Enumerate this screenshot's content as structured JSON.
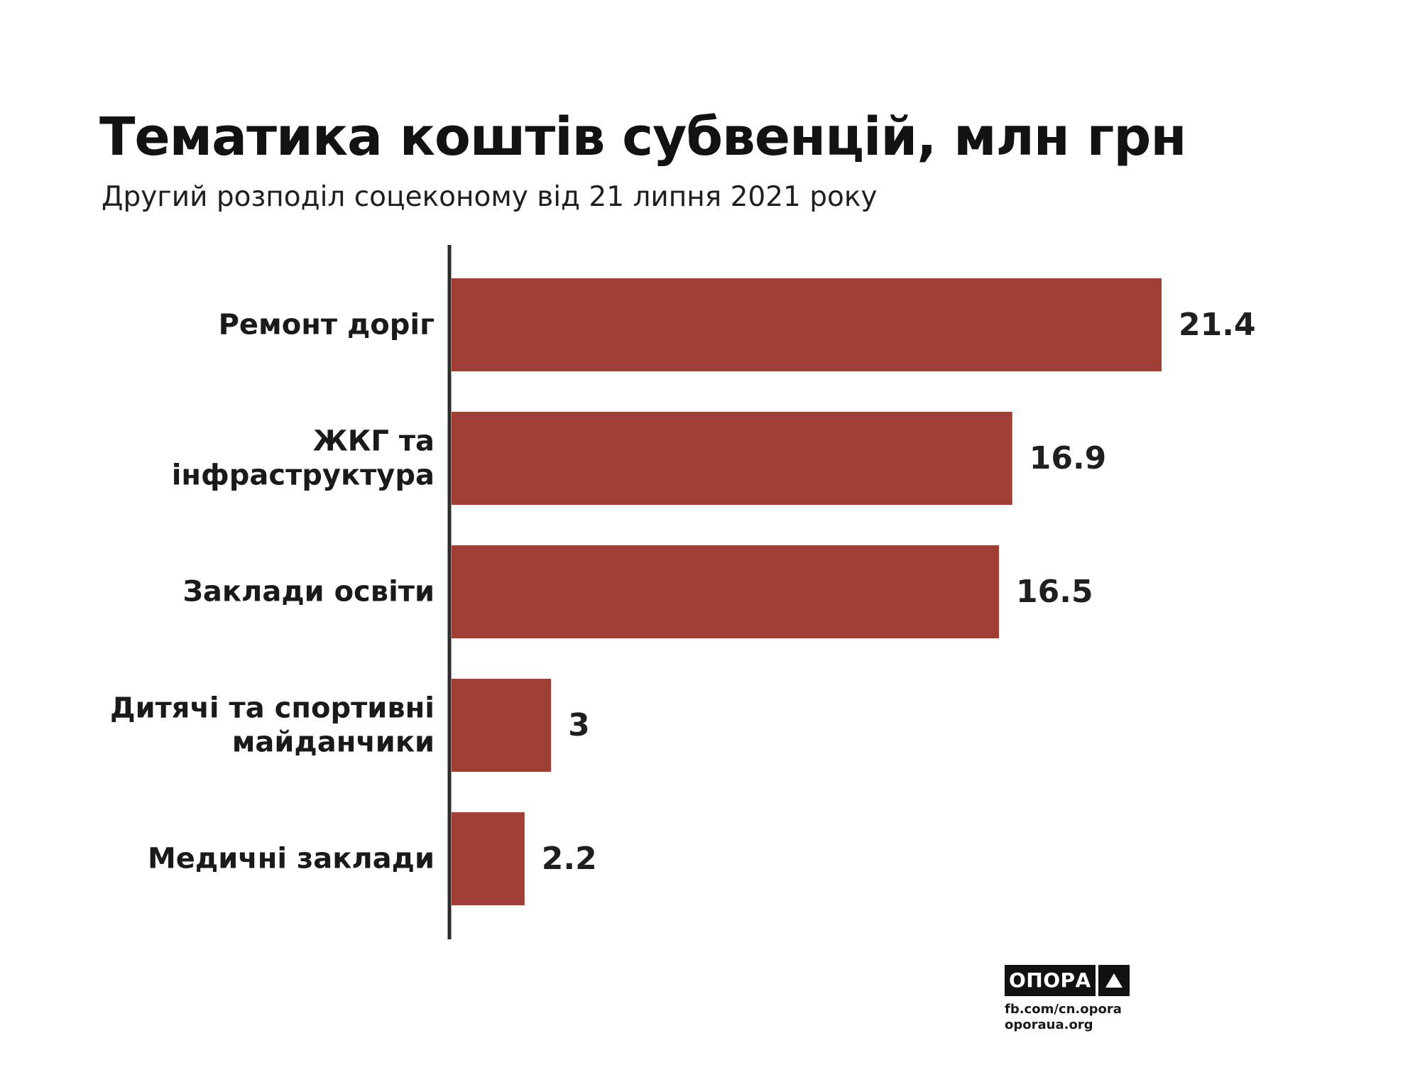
{
  "chart_data": {
    "type": "bar",
    "orientation": "horizontal",
    "title": "Тематика коштів субвенцій, млн грн",
    "subtitle": "Другий розподіл соцеконому від 21 липня 2021 року",
    "xlabel": "",
    "ylabel": "",
    "xlim": [
      0,
      21.4
    ],
    "categories": [
      [
        "Ремонт доріг"
      ],
      [
        "ЖКГ та",
        "інфраструктура"
      ],
      [
        "Заклади освіти"
      ],
      [
        "Дитячі та спортивні",
        "майданчики"
      ],
      [
        "Медичні заклади"
      ]
    ],
    "values": [
      21.4,
      16.9,
      16.5,
      3,
      2.2
    ],
    "value_labels": [
      "21.4",
      "16.9",
      "16.5",
      "3",
      "2.2"
    ],
    "bar_color": "#9e3e34",
    "axis_color": "#2b2b2b",
    "grid": false,
    "legend": "none"
  },
  "footer": {
    "logo_text": "ОПОРА",
    "links": [
      "fb.com/cn.opora",
      "oporaua.org"
    ]
  }
}
